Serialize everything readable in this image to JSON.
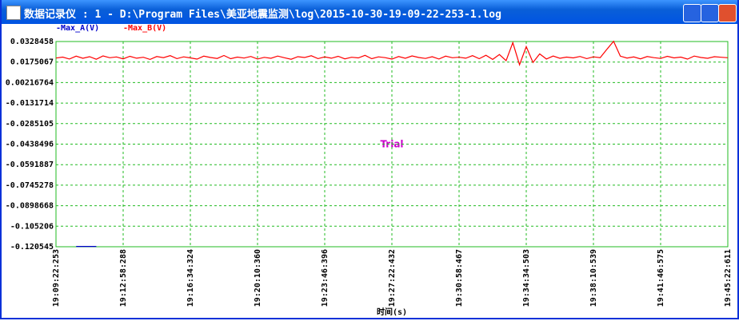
{
  "window": {
    "title": "数据记录仪 : 1 - D:\\Program Files\\美亚地震监测\\log\\2015-10-30-19-09-22-253-1.log"
  },
  "chart_data": {
    "type": "line",
    "annotation": "Trial",
    "x_label": "时间(s)",
    "categories": [
      "19:09:22:253",
      null,
      null,
      null,
      null,
      null,
      null,
      null,
      null,
      null,
      "19:12:58:288",
      null,
      null,
      null,
      null,
      null,
      null,
      null,
      null,
      null,
      "19:16:34:324",
      null,
      null,
      null,
      null,
      null,
      null,
      null,
      null,
      null,
      "19:20:10:360",
      null,
      null,
      null,
      null,
      null,
      null,
      null,
      null,
      null,
      "19:23:46:396",
      null,
      null,
      null,
      null,
      null,
      null,
      null,
      null,
      null,
      "19:27:22:432",
      null,
      null,
      null,
      null,
      null,
      null,
      null,
      null,
      null,
      "19:30:58:467",
      null,
      null,
      null,
      null,
      null,
      null,
      null,
      null,
      null,
      "19:34:34:503",
      null,
      null,
      null,
      null,
      null,
      null,
      null,
      null,
      null,
      "19:38:10:539",
      null,
      null,
      null,
      null,
      null,
      null,
      null,
      null,
      null,
      "19:41:46:575",
      null,
      null,
      null,
      null,
      null,
      null,
      null,
      null,
      null,
      "19:45:22:611"
    ],
    "series": [
      {
        "name": "-Max_A(V)",
        "color": "#0000cc",
        "values": [
          null,
          null,
          null,
          -0.1203,
          -0.1203,
          -0.1203,
          -0.1203,
          null,
          null,
          null,
          null,
          null,
          null,
          null,
          null,
          null,
          null,
          null,
          null,
          null,
          null,
          null,
          null,
          null,
          null,
          null,
          null,
          null,
          null,
          null,
          null,
          null,
          null,
          null,
          null,
          null,
          null,
          null,
          null,
          null,
          null,
          null,
          null,
          null,
          null,
          null,
          null,
          null,
          null,
          null,
          null,
          null,
          null,
          null,
          null,
          null,
          null,
          null,
          null,
          null,
          null,
          null,
          null,
          null,
          null,
          null,
          null,
          null,
          null,
          null,
          null,
          null,
          null,
          null,
          null,
          null,
          null,
          null,
          null,
          null,
          null,
          null,
          null,
          null,
          null,
          null,
          null,
          null,
          null,
          null,
          null,
          null,
          null,
          null,
          null,
          null,
          null,
          null,
          null,
          null,
          null
        ]
      },
      {
        "name": "-Max_B(V)",
        "color": "#ff0000",
        "values": [
          0.0205,
          0.0212,
          0.0198,
          0.0219,
          0.0203,
          0.0215,
          0.0196,
          0.0221,
          0.0207,
          0.0213,
          0.0199,
          0.0218,
          0.0204,
          0.0211,
          0.0195,
          0.0216,
          0.0208,
          0.0223,
          0.0201,
          0.0214,
          0.0206,
          0.0197,
          0.0219,
          0.0209,
          0.0202,
          0.0224,
          0.02,
          0.0212,
          0.0205,
          0.0217,
          0.0198,
          0.021,
          0.0203,
          0.022,
          0.0207,
          0.0196,
          0.0215,
          0.0209,
          0.0222,
          0.0201,
          0.0213,
          0.0204,
          0.0218,
          0.0199,
          0.0211,
          0.0206,
          0.0225,
          0.02,
          0.0214,
          0.0208,
          0.0197,
          0.0216,
          0.0203,
          0.0221,
          0.0209,
          0.0202,
          0.0215,
          0.0198,
          0.0219,
          0.0207,
          0.0211,
          0.0204,
          0.0223,
          0.02,
          0.0226,
          0.0195,
          0.0231,
          0.0185,
          0.032,
          0.0155,
          0.029,
          0.0172,
          0.0236,
          0.0198,
          0.022,
          0.0203,
          0.0212,
          0.0206,
          0.0217,
          0.0201,
          0.0214,
          0.0208,
          0.027,
          0.033,
          0.0219,
          0.0205,
          0.0213,
          0.0199,
          0.0216,
          0.0208,
          0.0202,
          0.0218,
          0.0206,
          0.0212,
          0.0197,
          0.022,
          0.0209,
          0.0203,
          0.0215,
          0.0211,
          0.0207
        ]
      }
    ],
    "ylim": [
      -0.120545,
      0.0328458
    ],
    "yticks": [
      0.0328458,
      0.0175067,
      0.00216764,
      -0.0131714,
      -0.0285105,
      -0.0438496,
      -0.0591887,
      -0.0745278,
      -0.0898668,
      -0.105206,
      -0.120545
    ],
    "grid": true
  }
}
